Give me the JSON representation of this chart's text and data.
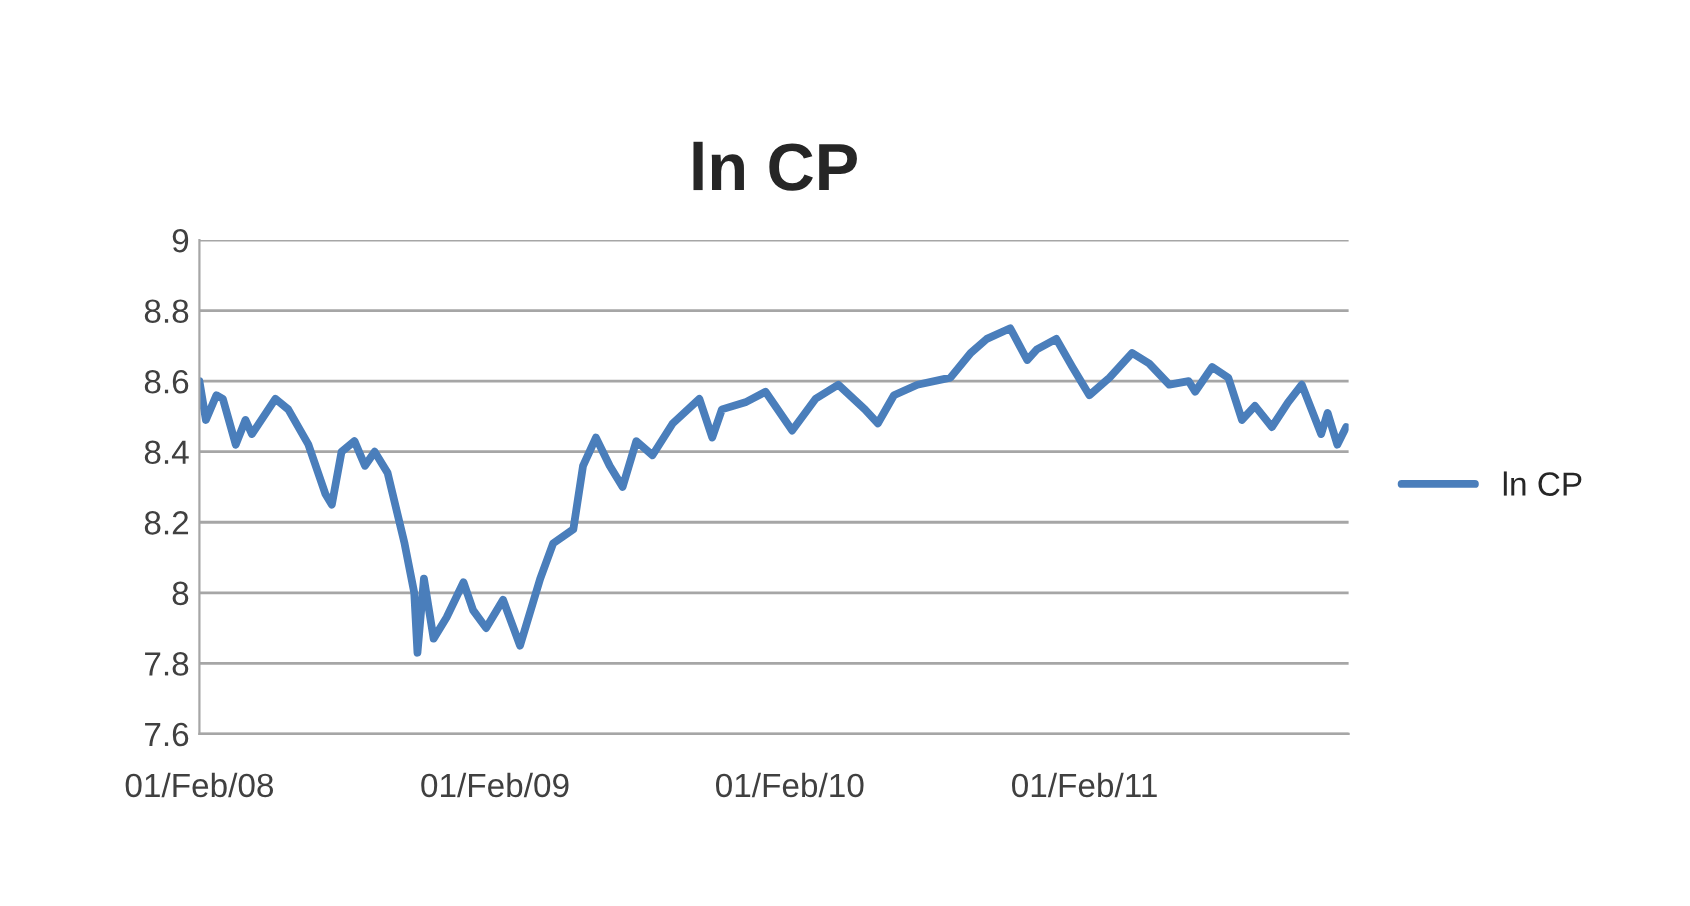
{
  "chart_data": {
    "type": "line",
    "title": "ln CP",
    "x": [
      "2008-02-01",
      "2008-02-09",
      "2008-02-22",
      "2008-03-01",
      "2008-03-17",
      "2008-03-29",
      "2008-04-06",
      "2008-05-05",
      "2008-05-21",
      "2008-06-15",
      "2008-07-06",
      "2008-07-14",
      "2008-07-26",
      "2008-08-11",
      "2008-08-24",
      "2008-09-05",
      "2008-09-21",
      "2008-10-12",
      "2008-10-24",
      "2008-10-28",
      "2008-11-05",
      "2008-11-17",
      "2008-12-03",
      "2008-12-24",
      "2009-01-05",
      "2009-01-21",
      "2009-02-11",
      "2009-03-04",
      "2009-03-29",
      "2009-04-14",
      "2009-05-09",
      "2009-05-21",
      "2009-06-06",
      "2009-06-23",
      "2009-07-09",
      "2009-07-26",
      "2009-08-15",
      "2009-09-09",
      "2009-10-12",
      "2009-10-28",
      "2009-11-09",
      "2009-12-08",
      "2010-01-02",
      "2010-02-04",
      "2010-03-05",
      "2010-04-02",
      "2010-05-05",
      "2010-05-21",
      "2010-06-10",
      "2010-07-09",
      "2010-08-19",
      "2010-09-13",
      "2010-10-03",
      "2010-11-01",
      "2010-11-22",
      "2010-12-04",
      "2010-12-28",
      "2011-01-17",
      "2011-02-07",
      "2011-03-04",
      "2011-04-01",
      "2011-04-22",
      "2011-05-17",
      "2011-06-10",
      "2011-06-18",
      "2011-07-09",
      "2011-07-29",
      "2011-08-15",
      "2011-08-31",
      "2011-09-21",
      "2011-10-11",
      "2011-10-28",
      "2011-11-21",
      "2011-11-29",
      "2011-12-11",
      "2011-12-22"
    ],
    "series": [
      {
        "name": "ln CP",
        "color": "#4a7ebb",
        "values": [
          8.6,
          8.49,
          8.56,
          8.55,
          8.42,
          8.49,
          8.45,
          8.55,
          8.52,
          8.42,
          8.28,
          8.25,
          8.4,
          8.43,
          8.36,
          8.4,
          8.34,
          8.14,
          8.0,
          7.83,
          8.04,
          7.87,
          7.93,
          8.03,
          7.95,
          7.9,
          7.98,
          7.85,
          8.04,
          8.14,
          8.18,
          8.36,
          8.44,
          8.36,
          8.3,
          8.43,
          8.39,
          8.48,
          8.55,
          8.44,
          8.52,
          8.54,
          8.57,
          8.46,
          8.55,
          8.59,
          8.52,
          8.48,
          8.56,
          8.59,
          8.61,
          8.68,
          8.72,
          8.75,
          8.66,
          8.69,
          8.72,
          8.64,
          8.56,
          8.61,
          8.68,
          8.65,
          8.59,
          8.6,
          8.57,
          8.64,
          8.61,
          8.49,
          8.53,
          8.47,
          8.54,
          8.59,
          8.45,
          8.51,
          8.42,
          8.47
        ]
      }
    ],
    "xlim": [
      "2008-02-01",
      "2011-12-25"
    ],
    "xticks": [
      {
        "value": "2008-02-01",
        "label": "01/Feb/08"
      },
      {
        "value": "2009-02-01",
        "label": "01/Feb/09"
      },
      {
        "value": "2010-02-01",
        "label": "01/Feb/10"
      },
      {
        "value": "2011-02-01",
        "label": "01/Feb/11"
      }
    ],
    "ylim": [
      7.6,
      9
    ],
    "yticks": [
      7.6,
      7.8,
      8,
      8.2,
      8.4,
      8.6,
      8.8,
      9
    ],
    "grid": "y",
    "legend": "right",
    "marker": "none",
    "line_style": "solid"
  }
}
